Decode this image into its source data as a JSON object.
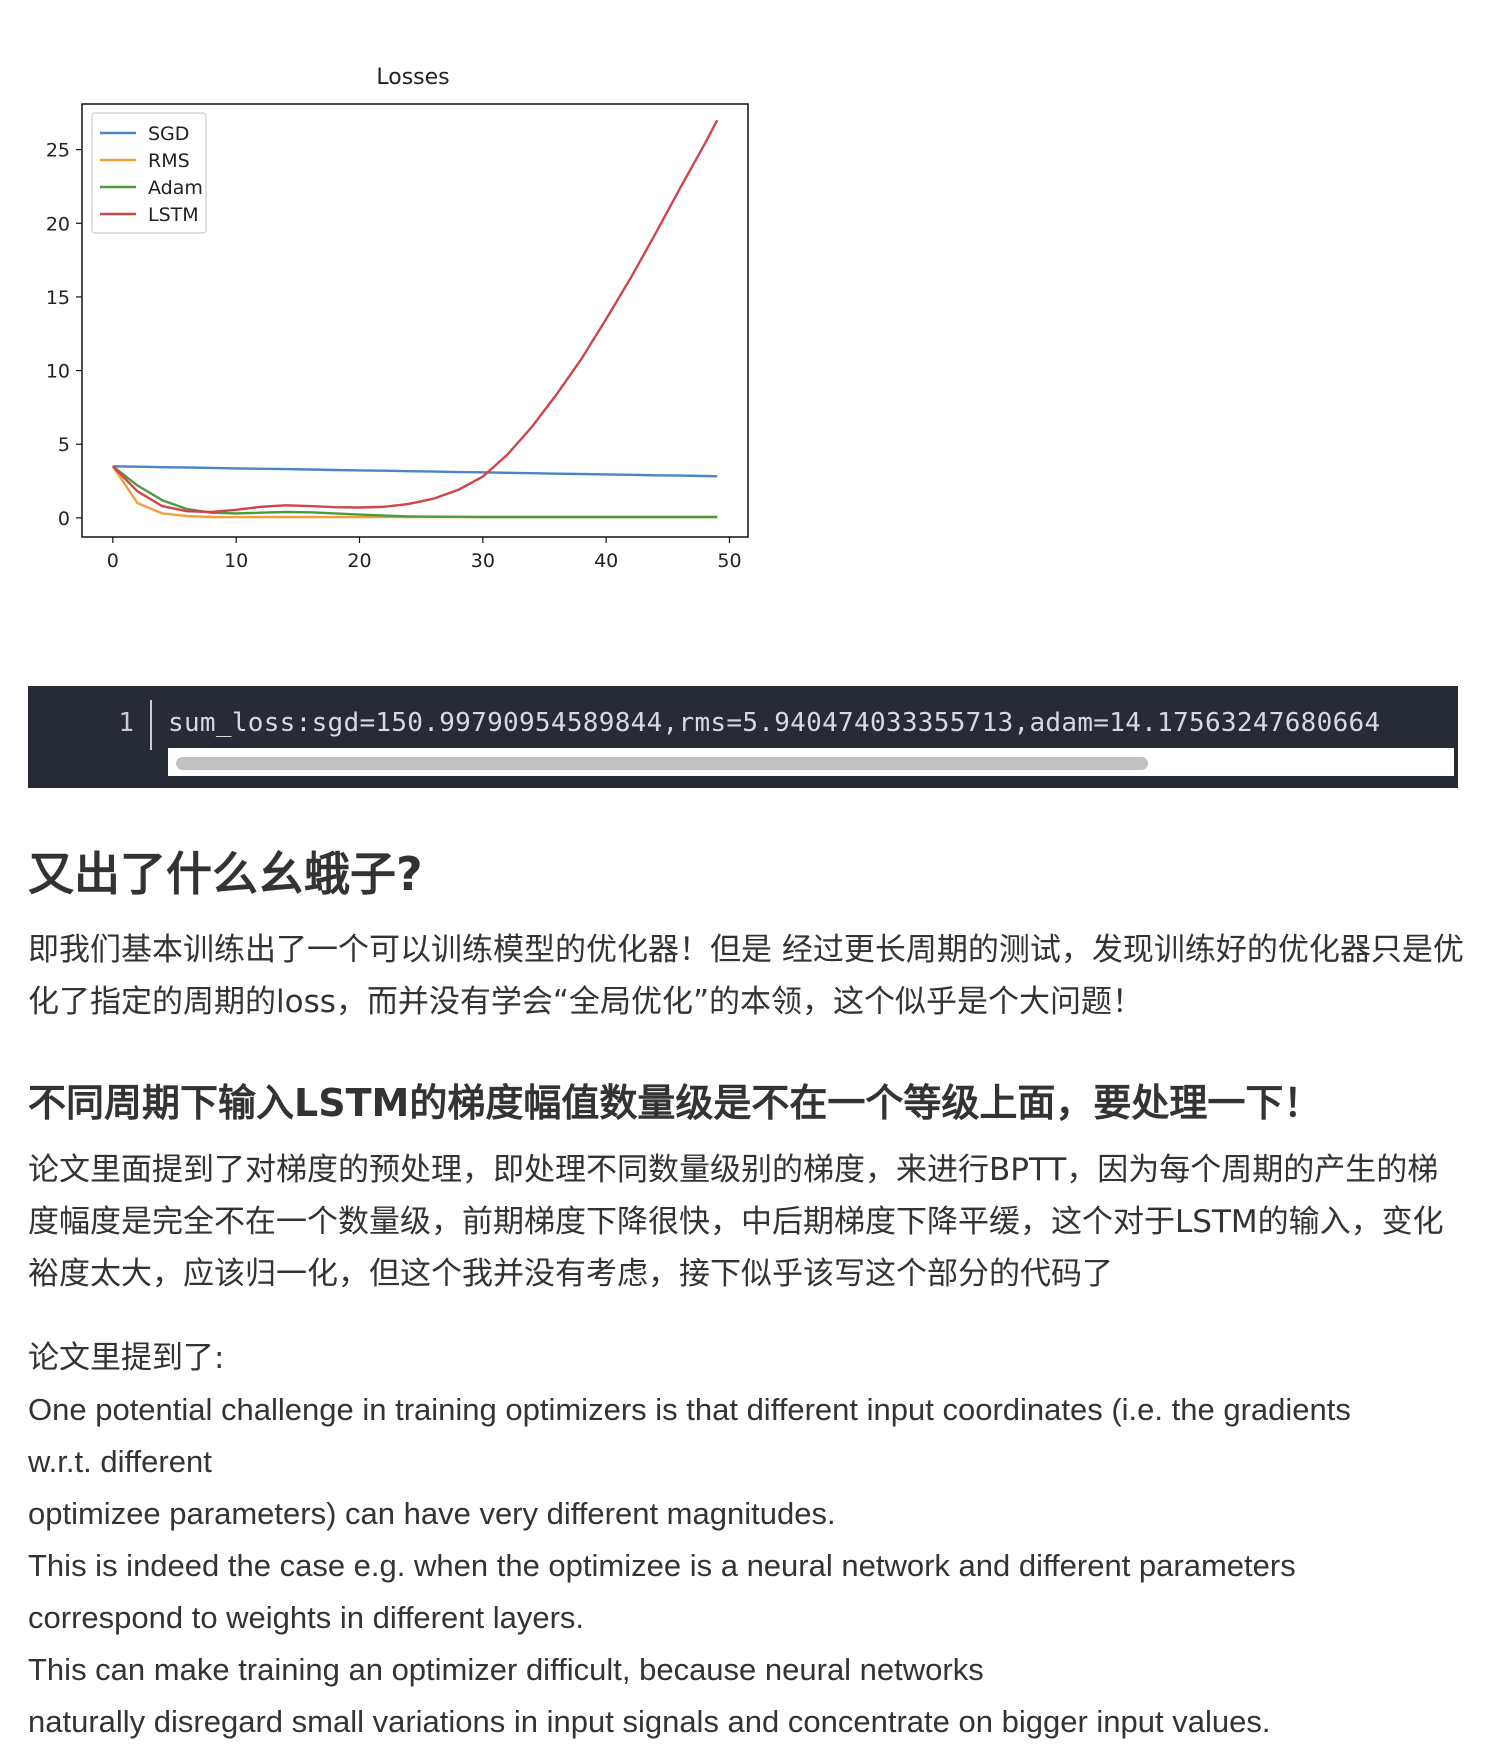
{
  "chart_data": {
    "type": "line",
    "title": "Losses",
    "xlabel": "",
    "ylabel": "",
    "xlim": [
      -2.5,
      51.5
    ],
    "ylim": [
      -1.3,
      28.1
    ],
    "xticks": [
      0,
      10,
      20,
      30,
      40,
      50
    ],
    "yticks": [
      0,
      5,
      10,
      15,
      20,
      25
    ],
    "legend_position": "top-left",
    "x": [
      0,
      2,
      4,
      6,
      8,
      10,
      12,
      14,
      16,
      18,
      20,
      22,
      24,
      26,
      28,
      30,
      32,
      34,
      36,
      38,
      40,
      42,
      44,
      46,
      48,
      49
    ],
    "series": [
      {
        "name": "SGD",
        "color": "#4a86c5",
        "values": [
          3.5,
          3.47,
          3.44,
          3.42,
          3.39,
          3.36,
          3.33,
          3.31,
          3.28,
          3.25,
          3.22,
          3.2,
          3.17,
          3.14,
          3.11,
          3.09,
          3.06,
          3.03,
          3.0,
          2.98,
          2.95,
          2.92,
          2.89,
          2.87,
          2.84,
          2.82
        ]
      },
      {
        "name": "RMS",
        "color": "#f59f3b",
        "values": [
          3.5,
          1.0,
          0.3,
          0.12,
          0.06,
          0.05,
          0.05,
          0.05,
          0.05,
          0.05,
          0.05,
          0.05,
          0.05,
          0.05,
          0.05,
          0.05,
          0.05,
          0.05,
          0.05,
          0.05,
          0.05,
          0.05,
          0.05,
          0.05,
          0.05,
          0.05
        ]
      },
      {
        "name": "Adam",
        "color": "#4e9a3e",
        "values": [
          3.5,
          2.2,
          1.2,
          0.6,
          0.35,
          0.3,
          0.35,
          0.4,
          0.38,
          0.3,
          0.22,
          0.15,
          0.1,
          0.08,
          0.07,
          0.06,
          0.06,
          0.06,
          0.06,
          0.06,
          0.06,
          0.06,
          0.06,
          0.06,
          0.06,
          0.06
        ]
      },
      {
        "name": "LSTM",
        "color": "#d0444a",
        "values": [
          3.5,
          1.8,
          0.8,
          0.45,
          0.4,
          0.55,
          0.75,
          0.85,
          0.8,
          0.72,
          0.7,
          0.75,
          0.95,
          1.3,
          1.9,
          2.8,
          4.3,
          6.2,
          8.4,
          10.8,
          13.5,
          16.3,
          19.3,
          22.4,
          25.4,
          27.0
        ]
      }
    ]
  },
  "code": {
    "line_number": "1",
    "text": "sum_loss:sgd=150.99790954589844,rms=5.940474033355713,adam=14.17563247680664"
  },
  "heading1": "又出了什么幺蛾子?",
  "para1": "即我们基本训练出了一个可以训练模型的优化器！但是 经过更长周期的测试，发现训练好的优化器只是优化了指定的周期的loss，而并没有学会“全局优化”的本领，这个似乎是个大问题！",
  "heading2": "不同周期下输入LSTM的梯度幅值数量级是不在一个等级上面，要处理一下！",
  "para2": "论文里面提到了对梯度的预处理，即处理不同数量级别的梯度，来进行BPTT，因为每个周期的产生的梯度幅度是完全不在一个数量级，前期梯度下降很快，中后期梯度下降平缓，这个对于LSTM的输入，变化裕度太大，应该归一化，但这个我并没有考虑，接下似乎该写这个部分的代码了",
  "quote_intro": "论文里提到了:",
  "quote_lines": [
    "One potential challenge in training optimizers is that different input coordinates (i.e. the gradients",
    "w.r.t. different",
    "optimizee parameters) can have very different magnitudes.",
    "This is indeed the case e.g. when the optimizee is a neural network and different parameters",
    "correspond to weights in different layers.",
    "This can make training an optimizer difficult, because neural networks",
    "naturally disregard small variations in input signals and concentrate on bigger input values."
  ]
}
